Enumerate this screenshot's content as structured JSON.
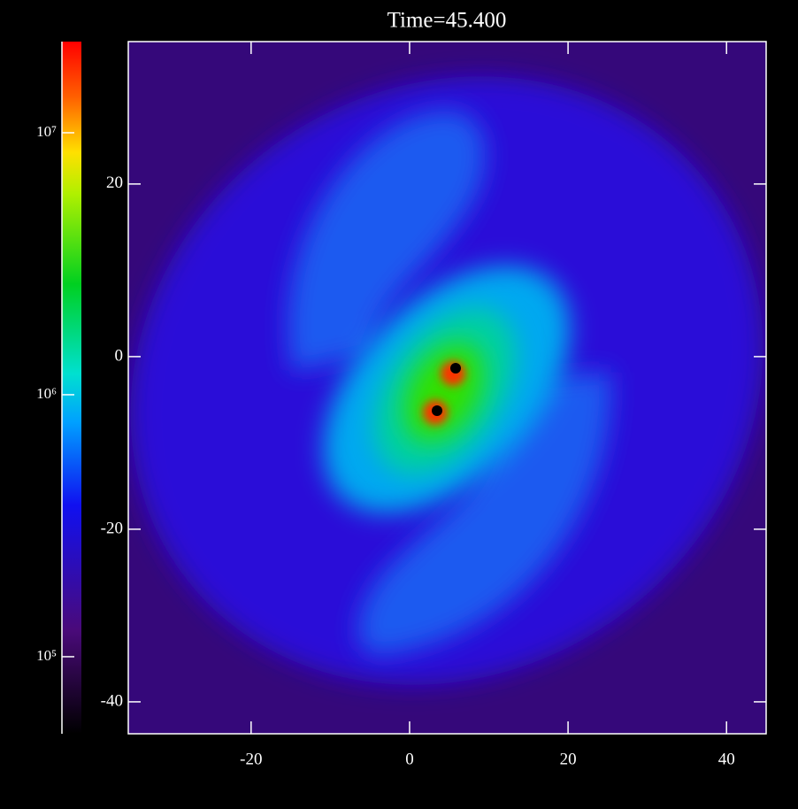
{
  "chart_data": {
    "type": "image",
    "title": "Time=45.400",
    "xlim": [
      -35.5,
      45
    ],
    "xticks": [
      -20,
      0,
      20,
      40
    ],
    "ylim": [
      -43.7,
      36.5
    ],
    "yticks": [
      -40,
      -20,
      0,
      20
    ],
    "colorbar": {
      "scale": "log",
      "lim": [
        50800,
        22280000
      ],
      "ticks": [
        {
          "value": 100000,
          "label": "10⁵"
        },
        {
          "value": 1000000,
          "label": "10⁶"
        },
        {
          "value": 10000000,
          "label": "10⁷"
        }
      ]
    }
  }
}
